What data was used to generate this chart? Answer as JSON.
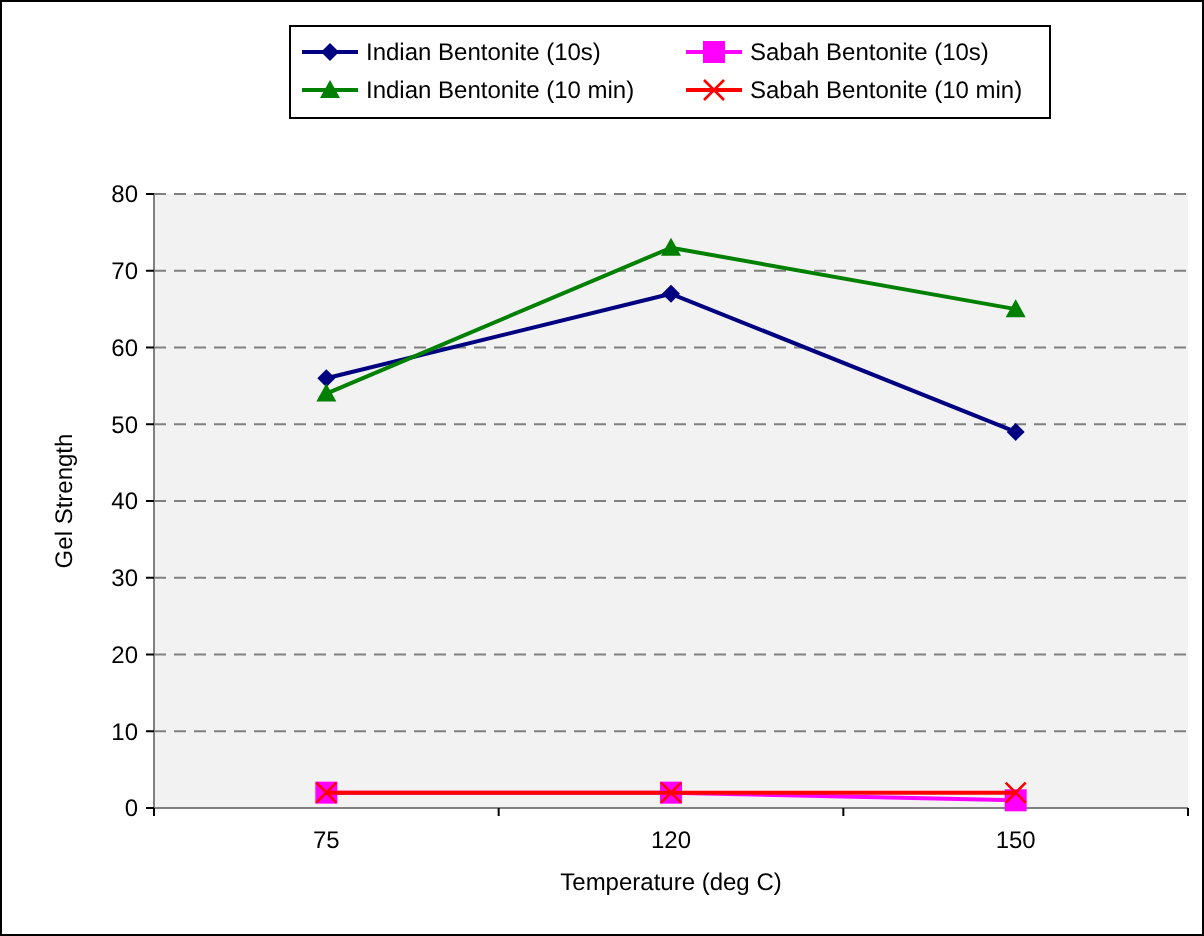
{
  "chart_data": {
    "type": "line",
    "xlabel": "Temperature (deg C)",
    "ylabel": "Gel Strength",
    "categories": [
      "75",
      "120",
      "150"
    ],
    "series": [
      {
        "name": "Indian Bentonite (10s)",
        "color": "#000080",
        "marker": "diamond",
        "values": [
          56,
          67,
          49
        ]
      },
      {
        "name": "Sabah Bentonite (10s)",
        "color": "#ff00ff",
        "marker": "square",
        "values": [
          2,
          2,
          1
        ]
      },
      {
        "name": "Indian Bentonite (10 min)",
        "color": "#008000",
        "marker": "triangle",
        "values": [
          54,
          73,
          65
        ]
      },
      {
        "name": "Sabah Bentonite (10 min)",
        "color": "#ff0000",
        "marker": "cross",
        "values": [
          2,
          2,
          2
        ]
      }
    ],
    "ylim": [
      0,
      80
    ],
    "yticks": [
      0,
      10,
      20,
      30,
      40,
      50,
      60,
      70,
      80
    ],
    "grid": "y",
    "legend": "top"
  }
}
